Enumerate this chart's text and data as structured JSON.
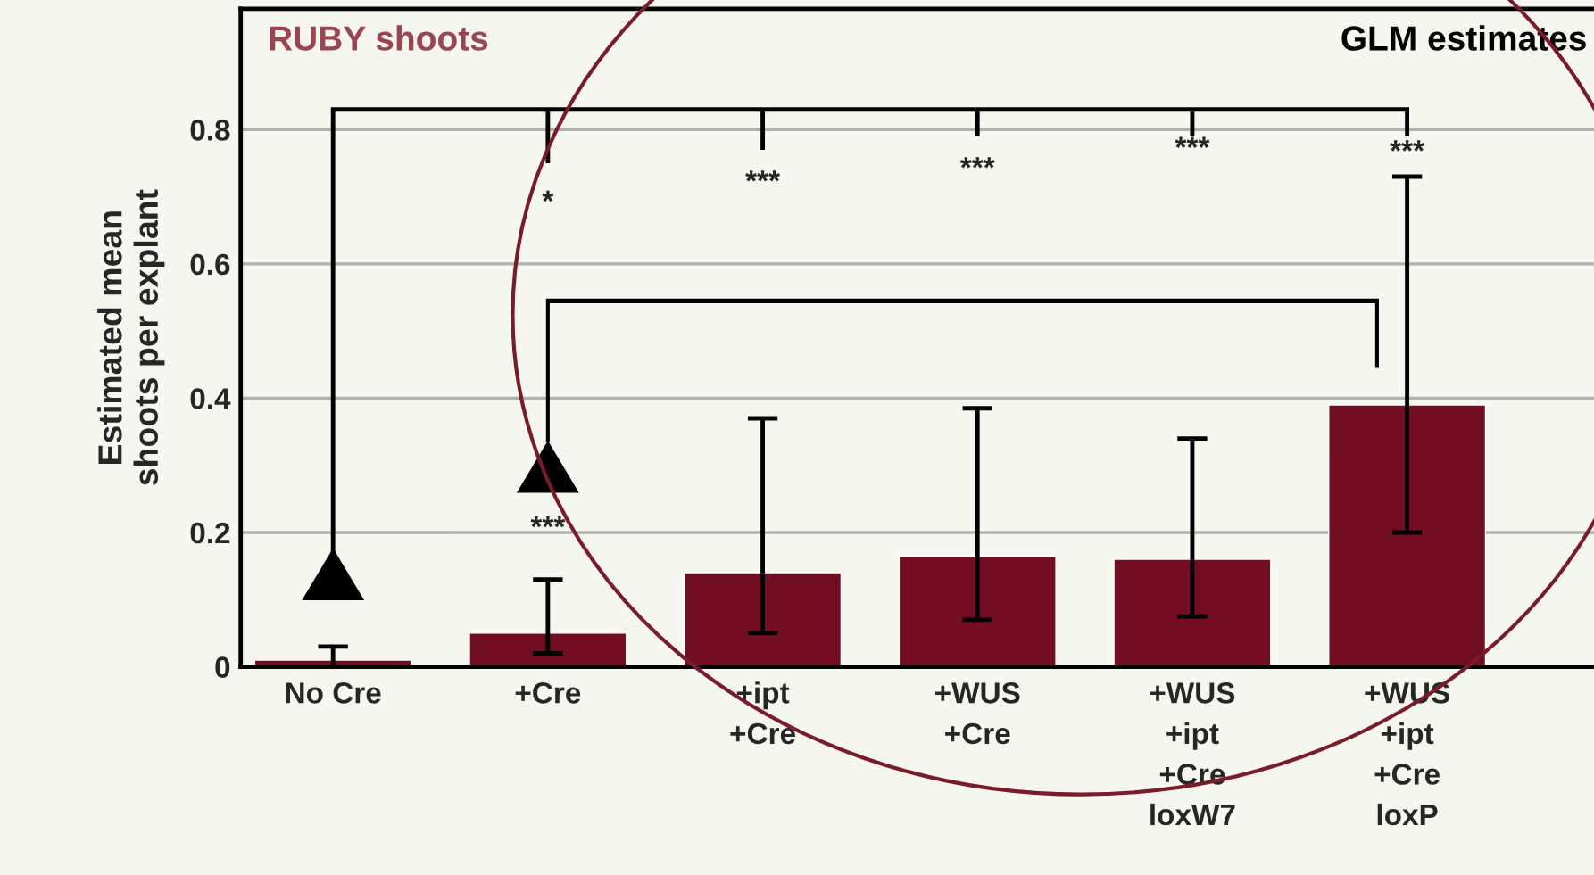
{
  "chart_data": {
    "type": "bar",
    "title": "RUBY shoots",
    "subtitle": "GLM estimates",
    "ylabel": "Estimated mean\nshoots per explant",
    "categories": [
      "No Cre",
      "+Cre",
      "+ipt\n+Cre",
      "+WUS\n+Cre",
      "+WUS\n+ipt\n+Cre\nloxW7",
      "+WUS\n+ipt\n+Cre\nloxP"
    ],
    "values": [
      0.01,
      0.05,
      0.14,
      0.165,
      0.16,
      0.39
    ],
    "errors": [
      [
        0.0,
        0.03
      ],
      [
        0.02,
        0.13
      ],
      [
        0.05,
        0.37
      ],
      [
        0.07,
        0.385
      ],
      [
        0.075,
        0.34
      ],
      [
        0.2,
        0.73
      ]
    ],
    "color": "#720d22",
    "ylim": [
      0,
      0.98
    ],
    "yticks": [
      0,
      0.2,
      0.4,
      0.6,
      0.8
    ],
    "grid": "y",
    "annotations": [
      "*",
      "***",
      "***",
      "***",
      "***",
      "***"
    ]
  }
}
